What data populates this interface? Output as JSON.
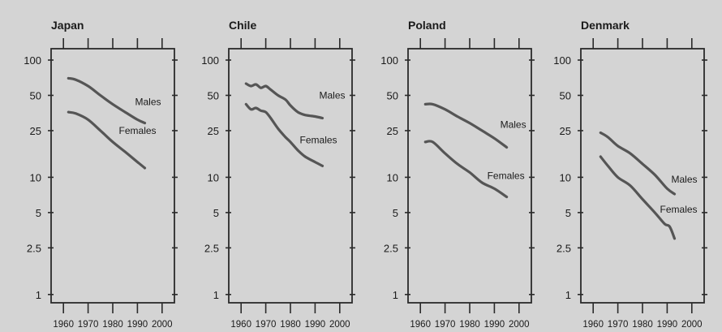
{
  "chart_data": [
    {
      "type": "line",
      "title": "Japan",
      "x_ticks": [
        1960,
        1970,
        1980,
        1990,
        2000
      ],
      "y_ticks": [
        1,
        2.5,
        5,
        10,
        25,
        50,
        100
      ],
      "y_scale": "log",
      "xlim": [
        1955,
        2005
      ],
      "ylim": [
        0.85,
        125
      ],
      "series": [
        {
          "name": "Males",
          "x": [
            1962,
            1965,
            1970,
            1975,
            1980,
            1985,
            1990,
            1993
          ],
          "y": [
            70,
            68,
            60,
            50,
            42,
            36,
            31,
            29
          ]
        },
        {
          "name": "Females",
          "x": [
            1962,
            1965,
            1970,
            1975,
            1980,
            1985,
            1990,
            1993
          ],
          "y": [
            36,
            35,
            31,
            25,
            20,
            16.5,
            13.5,
            12
          ]
        }
      ]
    },
    {
      "type": "line",
      "title": "Chile",
      "x_ticks": [
        1960,
        1970,
        1980,
        1990,
        2000
      ],
      "y_ticks": [
        1,
        2.5,
        5,
        10,
        25,
        50,
        100
      ],
      "y_scale": "log",
      "xlim": [
        1955,
        2005
      ],
      "ylim": [
        0.85,
        125
      ],
      "series": [
        {
          "name": "Males",
          "x": [
            1962,
            1964,
            1966,
            1968,
            1970,
            1972,
            1975,
            1978,
            1980,
            1983,
            1986,
            1990,
            1993
          ],
          "y": [
            63,
            60,
            62,
            58,
            60,
            56,
            50,
            46,
            41,
            36,
            34,
            33,
            32
          ]
        },
        {
          "name": "Females",
          "x": [
            1962,
            1964,
            1966,
            1968,
            1970,
            1972,
            1975,
            1978,
            1980,
            1983,
            1986,
            1990,
            1993
          ],
          "y": [
            42,
            38,
            39,
            37,
            36,
            32,
            26,
            22,
            20,
            17,
            15,
            13.5,
            12.5
          ]
        }
      ]
    },
    {
      "type": "line",
      "title": "Poland",
      "x_ticks": [
        1960,
        1970,
        1980,
        1990,
        2000
      ],
      "y_ticks": [
        1,
        2.5,
        5,
        10,
        25,
        50,
        100
      ],
      "y_scale": "log",
      "xlim": [
        1955,
        2005
      ],
      "ylim": [
        0.85,
        125
      ],
      "series": [
        {
          "name": "Males",
          "x": [
            1962,
            1965,
            1970,
            1975,
            1980,
            1985,
            1990,
            1995
          ],
          "y": [
            42,
            42,
            38,
            33,
            29,
            25,
            21.5,
            18
          ]
        },
        {
          "name": "Females",
          "x": [
            1962,
            1965,
            1970,
            1975,
            1980,
            1985,
            1990,
            1995
          ],
          "y": [
            20,
            20,
            16,
            13,
            11,
            9,
            8,
            6.8
          ]
        }
      ]
    },
    {
      "type": "line",
      "title": "Denmark",
      "x_ticks": [
        1960,
        1970,
        1980,
        1990,
        2000
      ],
      "y_ticks": [
        1,
        2.5,
        5,
        10,
        25,
        50,
        100
      ],
      "y_scale": "log",
      "xlim": [
        1955,
        2005
      ],
      "ylim": [
        0.85,
        125
      ],
      "series": [
        {
          "name": "Males",
          "x": [
            1963,
            1966,
            1970,
            1975,
            1980,
            1985,
            1990,
            1993
          ],
          "y": [
            24,
            22,
            18.5,
            16,
            13,
            10.5,
            8,
            7.2
          ]
        },
        {
          "name": "Females",
          "x": [
            1963,
            1966,
            1970,
            1975,
            1980,
            1985,
            1989,
            1991,
            1993
          ],
          "y": [
            15,
            12.5,
            10,
            8.5,
            6.5,
            5,
            4,
            3.8,
            3
          ]
        }
      ]
    }
  ]
}
